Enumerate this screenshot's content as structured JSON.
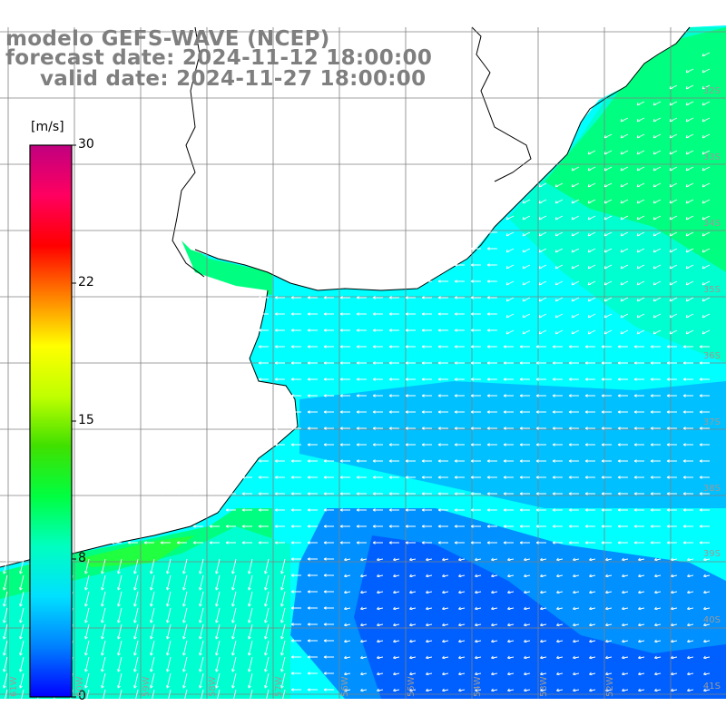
{
  "title": {
    "line1": "modelo GEFS-WAVE (NCEP)",
    "line2": "forecast date: 2024-11-12 18:00:00",
    "line3": "valid date: 2024-11-27 18:00:00"
  },
  "colorbar": {
    "unit": "[m/s]",
    "ticks": [
      "30",
      "22",
      "15",
      "8",
      "0"
    ],
    "min": 0,
    "max": 30,
    "colors": [
      "#0000ff",
      "#0080ff",
      "#00e0ff",
      "#00ffc0",
      "#00ff40",
      "#40e000",
      "#c0ff00",
      "#ffff00",
      "#ff8000",
      "#ff0000",
      "#ff0060",
      "#c00080"
    ]
  },
  "axes": {
    "lat_labels": [
      "32S",
      "33S",
      "34S",
      "35S",
      "36S",
      "37S",
      "38S",
      "39S",
      "40S",
      "41S"
    ],
    "lon_labels": [
      "61W",
      "60W",
      "59W",
      "58W",
      "57W",
      "56W",
      "55W",
      "54W",
      "53W",
      "52W"
    ]
  },
  "field": {
    "description_key": "wind-speed",
    "ocean_colors": {
      "calm": "#0060ff",
      "low": "#0090ff",
      "mid": "#00c0ff",
      "cyan": "#00ffff",
      "aqua": "#00ffd0",
      "green": "#00ff80",
      "bright_green": "#20ff40",
      "lime": "#40ff20"
    },
    "land_color": "#ffffff",
    "coast_color": "#000000",
    "grid_color": "#808080",
    "arrow_color": "#ffffff"
  }
}
